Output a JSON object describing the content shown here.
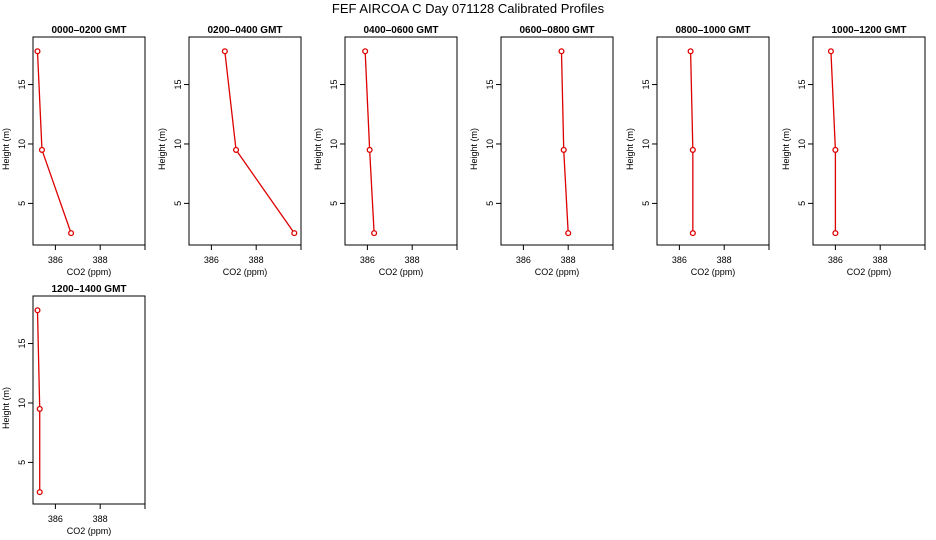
{
  "figure": {
    "title": "FEF AIRCOA C  Day 071128  Calibrated Profiles",
    "colors": {
      "line": "#dd0000",
      "axis": "#000000"
    }
  },
  "chart_data": [
    {
      "type": "line",
      "title": "0000–0200 GMT",
      "xlabel": "CO2 (ppm)",
      "ylabel": "Height (m)",
      "xlim": [
        385,
        390
      ],
      "ylim": [
        1.5,
        19
      ],
      "xticks": [
        386,
        388
      ],
      "yticks": [
        5,
        10,
        15
      ],
      "series": [
        {
          "x": [
            386.7,
            385.4,
            385.2
          ],
          "y": [
            2.5,
            9.5,
            17.8
          ]
        }
      ]
    },
    {
      "type": "line",
      "title": "0200–0400 GMT",
      "xlabel": "CO2 (ppm)",
      "ylabel": "Height (m)",
      "xlim": [
        385,
        390
      ],
      "ylim": [
        1.5,
        19
      ],
      "xticks": [
        386,
        388
      ],
      "yticks": [
        5,
        10,
        15
      ],
      "series": [
        {
          "x": [
            389.7,
            387.1,
            386.6
          ],
          "y": [
            2.5,
            9.5,
            17.8
          ]
        }
      ]
    },
    {
      "type": "line",
      "title": "0400–0600 GMT",
      "xlabel": "CO2 (ppm)",
      "ylabel": "Height (m)",
      "xlim": [
        385,
        390
      ],
      "ylim": [
        1.5,
        19
      ],
      "xticks": [
        386,
        388
      ],
      "yticks": [
        5,
        10,
        15
      ],
      "series": [
        {
          "x": [
            386.3,
            386.1,
            385.9
          ],
          "y": [
            2.5,
            9.5,
            17.8
          ]
        }
      ]
    },
    {
      "type": "line",
      "title": "0600–0800 GMT",
      "xlabel": "CO2 (ppm)",
      "ylabel": "Height (m)",
      "xlim": [
        385,
        390
      ],
      "ylim": [
        1.5,
        19
      ],
      "xticks": [
        386,
        388
      ],
      "yticks": [
        5,
        10,
        15
      ],
      "series": [
        {
          "x": [
            388.0,
            387.8,
            387.7
          ],
          "y": [
            2.5,
            9.5,
            17.8
          ]
        }
      ]
    },
    {
      "type": "line",
      "title": "0800–1000 GMT",
      "xlabel": "CO2 (ppm)",
      "ylabel": "Height (m)",
      "xlim": [
        385,
        390
      ],
      "ylim": [
        1.5,
        19
      ],
      "xticks": [
        386,
        388
      ],
      "yticks": [
        5,
        10,
        15
      ],
      "series": [
        {
          "x": [
            386.6,
            386.6,
            386.5
          ],
          "y": [
            2.5,
            9.5,
            17.8
          ]
        }
      ]
    },
    {
      "type": "line",
      "title": "1000–1200 GMT",
      "xlabel": "CO2 (ppm)",
      "ylabel": "Height (m)",
      "xlim": [
        385,
        390
      ],
      "ylim": [
        1.5,
        19
      ],
      "xticks": [
        386,
        388
      ],
      "yticks": [
        5,
        10,
        15
      ],
      "series": [
        {
          "x": [
            386.0,
            386.0,
            385.8
          ],
          "y": [
            2.5,
            9.5,
            17.8
          ]
        }
      ]
    },
    {
      "type": "line",
      "title": "1200–1400 GMT",
      "xlabel": "CO2 (ppm)",
      "ylabel": "Height (m)",
      "xlim": [
        385,
        390
      ],
      "ylim": [
        1.5,
        19
      ],
      "xticks": [
        386,
        388
      ],
      "yticks": [
        5,
        10,
        15
      ],
      "series": [
        {
          "x": [
            385.3,
            385.3,
            385.2
          ],
          "y": [
            2.5,
            9.5,
            17.8
          ]
        }
      ]
    }
  ]
}
